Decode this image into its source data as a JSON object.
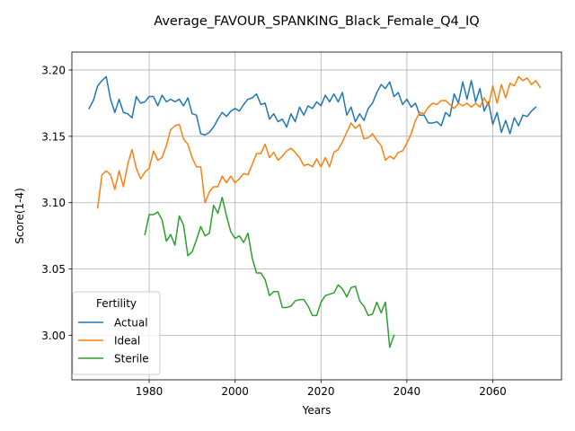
{
  "chart_data": {
    "type": "line",
    "title": "Average_FAVOUR_SPANKING_Black_Female_Q4_IQ",
    "xlabel": "Years",
    "ylabel": "Score(1-4)",
    "xlim": [
      1962,
      2076
    ],
    "ylim": [
      2.9665,
      3.2135
    ],
    "x_ticks": [
      1980,
      2000,
      2020,
      2040,
      2060
    ],
    "y_ticks": [
      3.0,
      3.05,
      3.1,
      3.15,
      3.2
    ],
    "y_tick_labels": [
      "3.00",
      "3.05",
      "3.10",
      "3.15",
      "3.20"
    ],
    "grid": true,
    "legend": {
      "title": "Fertility",
      "position": "lower-left"
    },
    "series": [
      {
        "name": "Actual",
        "color": "#1f77b4",
        "x_start": 1966,
        "values": [
          3.171,
          3.177,
          3.188,
          3.192,
          3.195,
          3.178,
          3.168,
          3.178,
          3.168,
          3.167,
          3.164,
          3.18,
          3.175,
          3.176,
          3.18,
          3.18,
          3.173,
          3.181,
          3.176,
          3.178,
          3.176,
          3.178,
          3.173,
          3.179,
          3.167,
          3.166,
          3.152,
          3.151,
          3.153,
          3.157,
          3.163,
          3.168,
          3.165,
          3.169,
          3.171,
          3.169,
          3.174,
          3.178,
          3.179,
          3.182,
          3.174,
          3.175,
          3.163,
          3.167,
          3.161,
          3.163,
          3.157,
          3.167,
          3.161,
          3.172,
          3.166,
          3.173,
          3.171,
          3.176,
          3.173,
          3.181,
          3.176,
          3.182,
          3.176,
          3.183,
          3.166,
          3.172,
          3.161,
          3.167,
          3.162,
          3.171,
          3.175,
          3.183,
          3.189,
          3.186,
          3.191,
          3.18,
          3.183,
          3.174,
          3.178,
          3.172,
          3.175,
          3.166,
          3.166,
          3.16,
          3.16,
          3.161,
          3.158,
          3.168,
          3.165,
          3.182,
          3.175,
          3.191,
          3.178,
          3.192,
          3.176,
          3.186,
          3.169,
          3.176,
          3.159,
          3.168,
          3.153,
          3.162,
          3.152,
          3.164,
          3.158,
          3.166,
          3.165,
          3.169,
          3.172
        ]
      },
      {
        "name": "Ideal",
        "color": "#ff7f0e",
        "x_start": 1968,
        "values": [
          3.096,
          3.121,
          3.124,
          3.121,
          3.11,
          3.124,
          3.112,
          3.129,
          3.14,
          3.126,
          3.118,
          3.123,
          3.126,
          3.139,
          3.132,
          3.134,
          3.143,
          3.155,
          3.158,
          3.159,
          3.148,
          3.144,
          3.134,
          3.127,
          3.127,
          3.1,
          3.108,
          3.112,
          3.112,
          3.12,
          3.115,
          3.12,
          3.115,
          3.118,
          3.122,
          3.121,
          3.129,
          3.137,
          3.137,
          3.144,
          3.134,
          3.138,
          3.132,
          3.135,
          3.139,
          3.141,
          3.138,
          3.134,
          3.128,
          3.129,
          3.127,
          3.133,
          3.127,
          3.134,
          3.127,
          3.138,
          3.14,
          3.146,
          3.153,
          3.16,
          3.156,
          3.159,
          3.148,
          3.149,
          3.152,
          3.147,
          3.143,
          3.132,
          3.135,
          3.133,
          3.138,
          3.139,
          3.145,
          3.152,
          3.162,
          3.168,
          3.167,
          3.172,
          3.175,
          3.174,
          3.177,
          3.177,
          3.174,
          3.171,
          3.175,
          3.173,
          3.175,
          3.172,
          3.175,
          3.172,
          3.179,
          3.173,
          3.188,
          3.175,
          3.189,
          3.179,
          3.19,
          3.188,
          3.195,
          3.192,
          3.194,
          3.189,
          3.192,
          3.187
        ]
      },
      {
        "name": "Sterile",
        "color": "#2ca02c",
        "x_start": 1979,
        "values": [
          3.076,
          3.091,
          3.091,
          3.093,
          3.087,
          3.071,
          3.076,
          3.068,
          3.09,
          3.083,
          3.06,
          3.063,
          3.072,
          3.082,
          3.075,
          3.077,
          3.098,
          3.092,
          3.104,
          3.09,
          3.078,
          3.073,
          3.075,
          3.07,
          3.077,
          3.058,
          3.047,
          3.047,
          3.042,
          3.03,
          3.033,
          3.033,
          3.021,
          3.021,
          3.022,
          3.026,
          3.027,
          3.027,
          3.022,
          3.015,
          3.015,
          3.025,
          3.03,
          3.031,
          3.032,
          3.038,
          3.035,
          3.029,
          3.036,
          3.037,
          3.026,
          3.022,
          3.015,
          3.016,
          3.025,
          3.017,
          3.025,
          2.991,
          3.0
        ]
      }
    ]
  }
}
